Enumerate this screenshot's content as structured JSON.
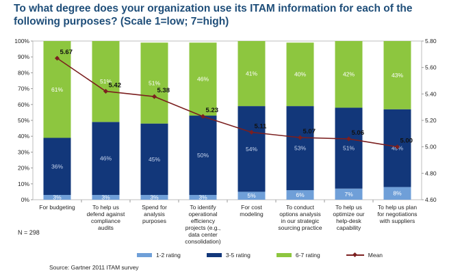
{
  "title": "To what degree does your organization use its ITAM information for each of the following purposes? (Scale 1=low; 7=high)",
  "n_label": "N = 298",
  "source": "Source: Gartner 2011 ITAM survey",
  "colors": {
    "low": "#6f9fd8",
    "mid": "#12377a",
    "high": "#8dc63f",
    "mean": "#7b1f1f",
    "title": "#1f4e79"
  },
  "chart_data": {
    "type": "bar",
    "stacked": true,
    "categories": [
      "For budgeting",
      "To help us defend against compliance audits",
      "Spend for analysis purposes",
      "To identify operational efficiency projects (e.g., data center consolidation)",
      "For cost modeling",
      "To conduct options analysis in our strategic sourcing practice",
      "To help us optimize our help-desk capability",
      "To help us plan for negotiations with suppliers"
    ],
    "category_lines": [
      [
        "For budgeting"
      ],
      [
        "To help us",
        "defend against",
        "compliance",
        "audits"
      ],
      [
        "Spend for",
        "analysis",
        "purposes"
      ],
      [
        "To identify",
        "operational",
        "efficiency",
        "projects (e.g.,",
        "data center",
        "consolidation)"
      ],
      [
        "For cost",
        "modeling"
      ],
      [
        "To conduct",
        "options analysis",
        "in our strategic",
        "sourcing practice"
      ],
      [
        "To help us",
        "optimize our",
        "help-desk",
        "capability"
      ],
      [
        "To help us plan",
        "for negotiations",
        "with suppliers"
      ]
    ],
    "series": [
      {
        "name": "1-2 rating",
        "values": [
          3,
          3,
          3,
          3,
          5,
          6,
          7,
          8
        ],
        "labels": [
          "3%",
          "3%",
          "3%",
          "3%",
          "5%",
          "6%",
          "7%",
          "8%"
        ]
      },
      {
        "name": "3-5 rating",
        "values": [
          36,
          46,
          45,
          50,
          54,
          53,
          51,
          49
        ],
        "labels": [
          "36%",
          "46%",
          "45%",
          "50%",
          "54%",
          "53%",
          "51%",
          "49%"
        ]
      },
      {
        "name": "6-7 rating",
        "values": [
          61,
          51,
          51,
          46,
          41,
          40,
          42,
          43
        ],
        "labels": [
          "61%",
          "51%",
          "51%",
          "46%",
          "41%",
          "40%",
          "42%",
          "43%"
        ]
      }
    ],
    "mean": {
      "name": "Mean",
      "values": [
        5.67,
        5.42,
        5.38,
        5.23,
        5.11,
        5.07,
        5.06,
        5.0
      ],
      "labels": [
        "5.67",
        "5.42",
        "5.38",
        "5.23",
        "5.11",
        "5.07",
        "5.06",
        "5.00"
      ]
    },
    "y_left": {
      "min": 0,
      "max": 100,
      "ticks": [
        "0%",
        "10%",
        "20%",
        "30%",
        "40%",
        "50%",
        "60%",
        "70%",
        "80%",
        "90%",
        "100%"
      ]
    },
    "y_right": {
      "min": 4.6,
      "max": 5.8,
      "ticks": [
        "4.60",
        "4.80",
        "5.00",
        "5.20",
        "5.40",
        "5.60",
        "5.80"
      ]
    },
    "legend": [
      "1-2 rating",
      "3-5 rating",
      "6-7 rating",
      "Mean"
    ]
  }
}
